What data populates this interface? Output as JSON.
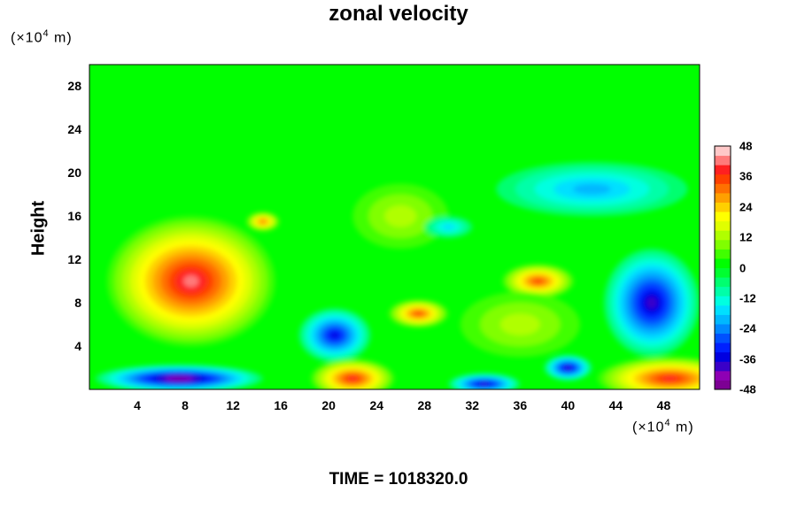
{
  "title": "zonal velocity",
  "time_label": "TIME = 1018320.0",
  "y_unit_prefix": "(×10",
  "y_unit_exp": "4",
  "y_unit_suffix": " m)",
  "x_unit_prefix": "(×10",
  "x_unit_exp": "4",
  "x_unit_suffix": " m)",
  "chart_data": {
    "type": "heatmap",
    "title": "zonal velocity",
    "xlabel": "",
    "ylabel": "Height",
    "x_unit": "(×10^4 m)",
    "y_unit": "(×10^4 m)",
    "xlim": [
      0,
      51
    ],
    "ylim": [
      0,
      30
    ],
    "x_ticks": [
      4,
      8,
      12,
      16,
      20,
      24,
      28,
      32,
      36,
      40,
      44,
      48
    ],
    "y_ticks": [
      4,
      8,
      12,
      16,
      20,
      24,
      28
    ],
    "colorbar": {
      "ticks": [
        48,
        36,
        24,
        12,
        0,
        -12,
        -24,
        -36,
        -48
      ],
      "range": [
        -48,
        48
      ],
      "step": 4,
      "colors": [
        "#7d0094",
        "#8e00b4",
        "#3a00c8",
        "#0000e0",
        "#0020ff",
        "#0050ff",
        "#0088ff",
        "#00b8ff",
        "#00e0ff",
        "#00ffe0",
        "#00ffa8",
        "#00ff70",
        "#00ff30",
        "#00ff00",
        "#40ff00",
        "#80ff00",
        "#b0ff00",
        "#e0ff00",
        "#ffff00",
        "#ffd000",
        "#ffa000",
        "#ff7000",
        "#ff4000",
        "#ff2020",
        "#ff7a7a",
        "#ffc8c8"
      ]
    },
    "background_value": 0,
    "features": [
      {
        "x": 8.5,
        "y": 10,
        "rx": 7,
        "ry": 6,
        "value": 44
      },
      {
        "x": 7.5,
        "y": 1,
        "rx": 7,
        "ry": 1.3,
        "value": -48
      },
      {
        "x": 20.5,
        "y": 5,
        "rx": 3,
        "ry": 2.5,
        "value": -36
      },
      {
        "x": 22,
        "y": 1,
        "rx": 3.5,
        "ry": 1.8,
        "value": 40
      },
      {
        "x": 27.5,
        "y": 7,
        "rx": 2.5,
        "ry": 1.3,
        "value": 36
      },
      {
        "x": 37.5,
        "y": 10,
        "rx": 3,
        "ry": 1.6,
        "value": 36
      },
      {
        "x": 47,
        "y": 8,
        "rx": 4,
        "ry": 5,
        "value": -40
      },
      {
        "x": 48.5,
        "y": 1,
        "rx": 6,
        "ry": 2,
        "value": 40
      },
      {
        "x": 40,
        "y": 2,
        "rx": 2,
        "ry": 1.2,
        "value": -40
      },
      {
        "x": 33,
        "y": 0.5,
        "rx": 3,
        "ry": 1,
        "value": -40
      },
      {
        "x": 42,
        "y": 18.5,
        "rx": 8,
        "ry": 2.5,
        "value": -20
      },
      {
        "x": 26,
        "y": 16,
        "rx": 4,
        "ry": 3,
        "value": 12
      },
      {
        "x": 14.5,
        "y": 15.5,
        "rx": 1.4,
        "ry": 0.9,
        "value": 30
      },
      {
        "x": 36,
        "y": 6,
        "rx": 5,
        "ry": 3,
        "value": 10
      },
      {
        "x": 30,
        "y": 15,
        "rx": 2,
        "ry": 1,
        "value": -16
      }
    ]
  }
}
